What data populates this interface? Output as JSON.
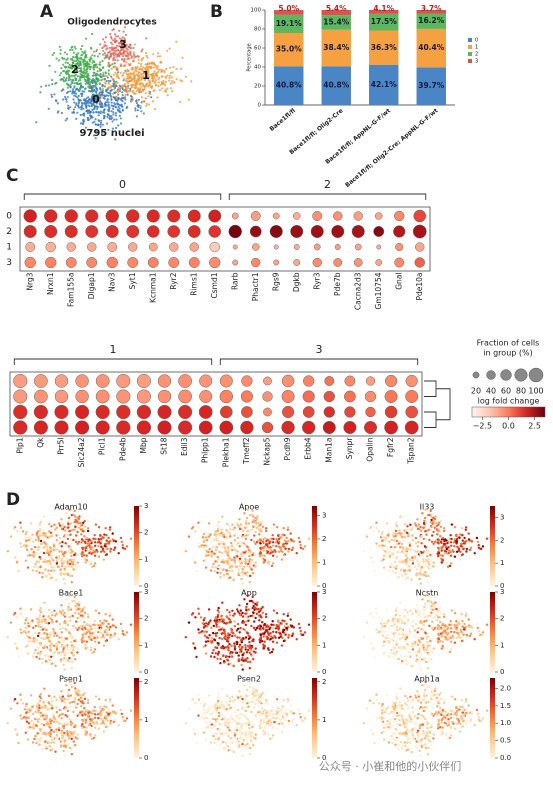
{
  "panel_labels": [
    "A",
    "B",
    "C",
    "D"
  ],
  "panel_a": {
    "title": "Oligodendrocytes",
    "clusters": [
      "0",
      "1",
      "2",
      "3"
    ],
    "note": "9795 nuclei"
  },
  "chart_data": [
    {
      "type": "bar",
      "y_label": "Percentage",
      "categories": [
        "Bace1fl/fl",
        "Bace1fl/fl; Olig2-Cre",
        "Bace1fl/fl; AppNL-G-F/wt",
        "Bace1fl/fl; Olig2-Cre; AppNL-G-F/wt"
      ],
      "ylim": [
        0,
        100
      ],
      "yticks": [
        0,
        20,
        40,
        60,
        80,
        100
      ],
      "series": [
        {
          "name": "0",
          "color": "#4a86c5",
          "values": [
            40.8,
            40.8,
            42.1,
            39.7
          ],
          "value_labels": [
            "40.8%",
            "40.8%",
            "42.1%",
            "39.7%"
          ]
        },
        {
          "name": "1",
          "color": "#f5a142",
          "values": [
            35.0,
            38.4,
            36.3,
            40.4
          ],
          "value_labels": [
            "35.0%",
            "38.4%",
            "36.3%",
            "40.4%"
          ]
        },
        {
          "name": "2",
          "color": "#5cb85c",
          "values": [
            19.1,
            15.4,
            17.5,
            16.2
          ],
          "value_labels": [
            "19.1%",
            "15.4%",
            "17.5%",
            "16.2%"
          ]
        },
        {
          "name": "3",
          "color": "#d9534f",
          "values": [
            5.0,
            5.4,
            4.1,
            3.7
          ],
          "value_labels": [
            "5.0%",
            "5.4%",
            "4.1%",
            "3.7%"
          ]
        }
      ]
    },
    {
      "type": "dotplot",
      "clim": [
        -3.5,
        3.5
      ],
      "groups": [
        {
          "name": "0",
          "genes": [
            "Nrg3",
            "Nrxn1",
            "Fam155a",
            "Dlgap1",
            "Nav3",
            "Syt1",
            "Kcnma1",
            "Ryr2",
            "Rims1",
            "Csmd1"
          ]
        },
        {
          "name": "2",
          "genes": [
            "Rarb",
            "Phactr1",
            "Rgs9",
            "Dgkb",
            "Ryr3",
            "Pde7b",
            "Cacna2d3",
            "Gm10754",
            "Gnal",
            "Pde10a"
          ]
        }
      ],
      "rows": [
        "0",
        "2",
        "1",
        "3"
      ],
      "fraction": [
        [
          85,
          85,
          85,
          82,
          85,
          85,
          82,
          80,
          80,
          80,
          20,
          45,
          20,
          25,
          45,
          40,
          40,
          25,
          50,
          75
        ],
        [
          80,
          80,
          80,
          78,
          80,
          80,
          75,
          75,
          78,
          75,
          85,
          65,
          80,
          80,
          80,
          80,
          80,
          55,
          70,
          90
        ],
        [
          45,
          50,
          40,
          40,
          45,
          40,
          35,
          40,
          40,
          50,
          10,
          25,
          10,
          15,
          20,
          15,
          20,
          10,
          30,
          40
        ],
        [
          60,
          60,
          55,
          55,
          60,
          55,
          55,
          55,
          55,
          60,
          15,
          40,
          15,
          20,
          40,
          35,
          35,
          20,
          45,
          50
        ]
      ],
      "lfc": [
        [
          1.8,
          1.6,
          1.6,
          1.5,
          1.6,
          1.5,
          1.6,
          1.5,
          1.6,
          1.8,
          -1.0,
          -0.8,
          -1.0,
          -1.2,
          -0.5,
          -0.5,
          -0.8,
          -1.0,
          -0.3,
          1.0
        ],
        [
          1.6,
          1.5,
          1.5,
          1.4,
          1.5,
          1.4,
          1.5,
          1.4,
          1.5,
          1.4,
          3.3,
          2.8,
          3.0,
          2.7,
          2.6,
          2.6,
          2.5,
          3.0,
          2.3,
          2.5
        ],
        [
          -1.2,
          -1.3,
          -1.2,
          -1.1,
          -1.2,
          -1.1,
          -1.0,
          -1.1,
          -1.0,
          -2.0,
          -1.2,
          -1.0,
          -1.3,
          -1.2,
          -0.8,
          -0.8,
          -1.0,
          -1.2,
          -0.6,
          -1.0
        ],
        [
          -0.3,
          -0.2,
          -0.3,
          -0.3,
          -0.2,
          -0.3,
          -0.2,
          -0.3,
          -0.2,
          -0.4,
          -1.0,
          -0.3,
          -1.0,
          -1.0,
          -0.4,
          -0.4,
          -0.6,
          -1.0,
          -0.3,
          0.5
        ]
      ]
    },
    {
      "type": "dotplot",
      "clim": [
        -3.5,
        3.5
      ],
      "groups": [
        {
          "name": "1",
          "genes": [
            "Plp1",
            "Qk",
            "Prr5l",
            "Slc24a2",
            "Plcl1",
            "Pde4b",
            "Mbp",
            "St18",
            "Edil3",
            "Phlpp1"
          ]
        },
        {
          "name": "3",
          "genes": [
            "Plekha1",
            "Tmeff2",
            "Nckap5",
            "Pcdh9",
            "Erbb4",
            "Man1a",
            "Synpr",
            "Opalin",
            "Fgfr2",
            "Tspan2"
          ]
        }
      ],
      "rows": [
        null,
        null,
        null,
        null
      ],
      "fraction": [
        [
          95,
          90,
          85,
          85,
          90,
          95,
          95,
          85,
          90,
          80,
          80,
          60,
          35,
          75,
          60,
          45,
          55,
          40,
          70,
          70
        ],
        [
          95,
          90,
          85,
          85,
          90,
          95,
          95,
          85,
          90,
          80,
          85,
          70,
          50,
          80,
          70,
          60,
          65,
          60,
          80,
          80
        ],
        [
          98,
          95,
          95,
          95,
          95,
          98,
          98,
          95,
          95,
          90,
          75,
          65,
          35,
          70,
          65,
          60,
          60,
          50,
          75,
          75
        ],
        [
          98,
          95,
          95,
          95,
          95,
          98,
          98,
          95,
          95,
          90,
          90,
          85,
          60,
          85,
          85,
          80,
          80,
          80,
          90,
          90
        ]
      ],
      "lfc": [
        [
          -0.8,
          -0.7,
          -0.8,
          -0.6,
          -0.6,
          -0.7,
          -0.8,
          -0.6,
          -0.5,
          -0.6,
          -0.5,
          -0.4,
          -0.8,
          -0.5,
          -0.2,
          0.2,
          -0.3,
          -0.8,
          -0.3,
          -0.5
        ],
        [
          -0.7,
          -0.6,
          -0.7,
          -0.5,
          -0.5,
          -0.6,
          -0.7,
          -0.5,
          -0.4,
          -0.5,
          -0.2,
          0.0,
          -0.5,
          -0.2,
          0.3,
          0.8,
          0.2,
          -0.4,
          0.1,
          0.0
        ],
        [
          1.5,
          1.6,
          1.6,
          1.7,
          1.6,
          1.5,
          1.6,
          1.7,
          1.5,
          1.7,
          1.2,
          0.8,
          -0.3,
          0.8,
          1.0,
          1.5,
          1.0,
          0.5,
          1.2,
          0.8
        ],
        [
          1.6,
          1.7,
          1.7,
          1.8,
          1.7,
          1.6,
          1.7,
          1.8,
          1.6,
          1.8,
          1.8,
          1.7,
          0.8,
          1.6,
          1.7,
          2.0,
          1.8,
          1.5,
          1.8,
          1.7
        ]
      ],
      "size_legend": {
        "title": [
          "Fraction of cells",
          "in group (%)"
        ],
        "values": [
          20,
          40,
          60,
          80,
          100
        ]
      },
      "colorbar": {
        "title": "log fold change",
        "lim": [
          -3.5,
          3.5
        ],
        "ticks": [
          {
            "value": -2.5,
            "label": "−2.5"
          },
          {
            "value": 0,
            "label": "0.0"
          },
          {
            "value": 2.5,
            "label": "2.5"
          }
        ]
      }
    }
  ],
  "panel_d": {
    "plots": [
      {
        "title": "Adam10",
        "clim": [
          0,
          3
        ],
        "ticks": [
          0,
          1,
          2,
          3
        ]
      },
      {
        "title": "Apoe",
        "clim": [
          0,
          3.4
        ],
        "ticks": [
          0,
          1,
          2,
          3
        ]
      },
      {
        "title": "Il33",
        "clim": [
          0,
          3.5
        ],
        "ticks": [
          0,
          1,
          2,
          3
        ]
      },
      {
        "title": "Bace1",
        "clim": [
          0,
          3
        ],
        "ticks": [
          0,
          1,
          2,
          3
        ]
      },
      {
        "title": "App",
        "clim": [
          0,
          3
        ],
        "ticks": [
          0,
          1,
          2,
          3
        ]
      },
      {
        "title": "Ncstn",
        "clim": [
          0,
          3
        ],
        "ticks": [
          0,
          1,
          2,
          3
        ]
      },
      {
        "title": "Psen1",
        "clim": [
          0,
          2.1
        ],
        "ticks": [
          0,
          1,
          2
        ]
      },
      {
        "title": "Psen2",
        "clim": [
          0,
          2.1
        ],
        "ticks": [
          0,
          1,
          2
        ]
      },
      {
        "title": "Aph1a",
        "clim": [
          0,
          2.3
        ],
        "ticks": [
          {
            "value": 0,
            "label": "0.0"
          },
          {
            "value": 0.5,
            "label": "0.5"
          },
          {
            "value": 1,
            "label": "1.0"
          },
          {
            "value": 1.5,
            "label": "1.5"
          },
          {
            "value": 2,
            "label": "2.0"
          }
        ]
      }
    ]
  },
  "watermark": "公众号 · 小崔和他的小伙伴们"
}
